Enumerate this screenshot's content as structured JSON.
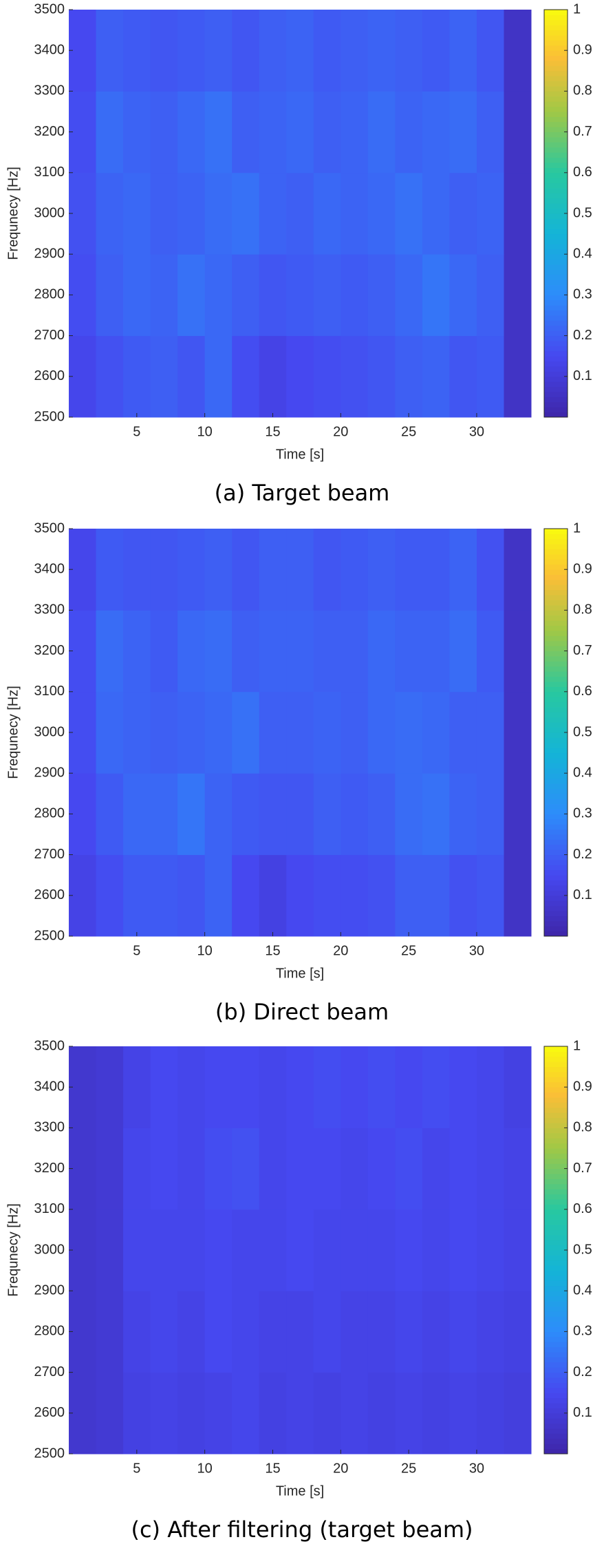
{
  "chart_data": [
    {
      "type": "heatmap",
      "title": "(a) Target beam",
      "xlabel": "Time [s]",
      "ylabel": "Frequnecy [Hz]",
      "colormap": "parula",
      "xlim": [
        0,
        34
      ],
      "ylim": [
        2500,
        3500
      ],
      "xticks": [
        5,
        10,
        15,
        20,
        25,
        30
      ],
      "yticks": [
        2500,
        2600,
        2700,
        2800,
        2900,
        3000,
        3100,
        3200,
        3300,
        3400,
        3500
      ],
      "clim": [
        0,
        1
      ],
      "cticks": [
        0.1,
        0.2,
        0.3,
        0.4,
        0.5,
        0.6,
        0.7,
        0.8,
        0.9,
        1
      ],
      "x_edges": [
        0,
        2,
        4,
        6,
        8,
        10,
        12,
        14,
        16,
        18,
        20,
        22,
        24,
        26,
        28,
        30,
        32,
        34
      ],
      "y_edges": [
        2500,
        2700,
        2900,
        3100,
        3300,
        3500
      ],
      "values": [
        [
          0.14,
          0.17,
          0.19,
          0.2,
          0.18,
          0.22,
          0.16,
          0.13,
          0.15,
          0.16,
          0.17,
          0.18,
          0.2,
          0.21,
          0.18,
          0.19,
          0.06
        ],
        [
          0.16,
          0.2,
          0.22,
          0.21,
          0.24,
          0.22,
          0.2,
          0.18,
          0.19,
          0.2,
          0.19,
          0.2,
          0.22,
          0.25,
          0.22,
          0.2,
          0.06
        ],
        [
          0.17,
          0.21,
          0.22,
          0.2,
          0.21,
          0.23,
          0.24,
          0.21,
          0.2,
          0.22,
          0.21,
          0.22,
          0.24,
          0.22,
          0.2,
          0.21,
          0.06
        ],
        [
          0.16,
          0.23,
          0.21,
          0.2,
          0.22,
          0.24,
          0.2,
          0.21,
          0.22,
          0.2,
          0.21,
          0.23,
          0.21,
          0.22,
          0.23,
          0.2,
          0.06
        ],
        [
          0.15,
          0.2,
          0.19,
          0.18,
          0.19,
          0.2,
          0.18,
          0.2,
          0.21,
          0.19,
          0.2,
          0.21,
          0.2,
          0.19,
          0.21,
          0.18,
          0.06
        ]
      ]
    },
    {
      "type": "heatmap",
      "title": "(b) Direct beam",
      "xlabel": "Time [s]",
      "ylabel": "Frequnecy [Hz]",
      "colormap": "parula",
      "xlim": [
        0,
        34
      ],
      "ylim": [
        2500,
        3500
      ],
      "xticks": [
        5,
        10,
        15,
        20,
        25,
        30
      ],
      "yticks": [
        2500,
        2600,
        2700,
        2800,
        2900,
        3000,
        3100,
        3200,
        3300,
        3400,
        3500
      ],
      "clim": [
        0,
        1
      ],
      "cticks": [
        0.1,
        0.2,
        0.3,
        0.4,
        0.5,
        0.6,
        0.7,
        0.8,
        0.9,
        1
      ],
      "x_edges": [
        0,
        2,
        4,
        6,
        8,
        10,
        12,
        14,
        16,
        18,
        20,
        22,
        24,
        26,
        28,
        30,
        32,
        34
      ],
      "y_edges": [
        2500,
        2700,
        2900,
        3100,
        3300,
        3500
      ],
      "values": [
        [
          0.13,
          0.16,
          0.19,
          0.19,
          0.18,
          0.21,
          0.15,
          0.12,
          0.15,
          0.16,
          0.16,
          0.17,
          0.2,
          0.2,
          0.17,
          0.18,
          0.06
        ],
        [
          0.15,
          0.19,
          0.22,
          0.22,
          0.25,
          0.21,
          0.19,
          0.18,
          0.18,
          0.2,
          0.19,
          0.2,
          0.23,
          0.24,
          0.21,
          0.2,
          0.06
        ],
        [
          0.16,
          0.22,
          0.21,
          0.2,
          0.21,
          0.22,
          0.24,
          0.2,
          0.2,
          0.21,
          0.2,
          0.22,
          0.23,
          0.22,
          0.2,
          0.2,
          0.06
        ],
        [
          0.16,
          0.23,
          0.21,
          0.19,
          0.22,
          0.23,
          0.2,
          0.21,
          0.21,
          0.2,
          0.2,
          0.22,
          0.21,
          0.21,
          0.23,
          0.19,
          0.06
        ],
        [
          0.14,
          0.19,
          0.18,
          0.18,
          0.19,
          0.2,
          0.18,
          0.2,
          0.2,
          0.18,
          0.19,
          0.2,
          0.19,
          0.19,
          0.21,
          0.17,
          0.06
        ]
      ]
    },
    {
      "type": "heatmap",
      "title": "(c) After filtering (target beam)",
      "xlabel": "Time [s]",
      "ylabel": "Frequnecy [Hz]",
      "colormap": "parula",
      "xlim": [
        0,
        34
      ],
      "ylim": [
        2500,
        3500
      ],
      "xticks": [
        5,
        10,
        15,
        20,
        25,
        30
      ],
      "yticks": [
        2500,
        2600,
        2700,
        2800,
        2900,
        3000,
        3100,
        3200,
        3300,
        3400,
        3500
      ],
      "clim": [
        0,
        1
      ],
      "cticks": [
        0.1,
        0.2,
        0.3,
        0.4,
        0.5,
        0.6,
        0.7,
        0.8,
        0.9,
        1
      ],
      "x_edges": [
        0,
        2,
        4,
        6,
        8,
        10,
        12,
        14,
        16,
        18,
        20,
        22,
        24,
        26,
        28,
        30,
        32,
        34
      ],
      "y_edges": [
        2500,
        2700,
        2900,
        3100,
        3300,
        3500
      ],
      "values": [
        [
          0.08,
          0.09,
          0.12,
          0.13,
          0.12,
          0.13,
          0.14,
          0.12,
          0.13,
          0.12,
          0.13,
          0.12,
          0.13,
          0.12,
          0.13,
          0.12,
          0.11
        ],
        [
          0.08,
          0.09,
          0.13,
          0.14,
          0.13,
          0.15,
          0.14,
          0.13,
          0.13,
          0.14,
          0.13,
          0.13,
          0.14,
          0.13,
          0.14,
          0.13,
          0.12
        ],
        [
          0.08,
          0.09,
          0.14,
          0.14,
          0.14,
          0.15,
          0.14,
          0.14,
          0.15,
          0.14,
          0.14,
          0.14,
          0.15,
          0.14,
          0.15,
          0.14,
          0.13
        ],
        [
          0.08,
          0.09,
          0.14,
          0.15,
          0.14,
          0.16,
          0.17,
          0.14,
          0.15,
          0.15,
          0.14,
          0.15,
          0.16,
          0.14,
          0.15,
          0.14,
          0.13
        ],
        [
          0.08,
          0.09,
          0.13,
          0.15,
          0.14,
          0.15,
          0.15,
          0.14,
          0.15,
          0.16,
          0.15,
          0.16,
          0.15,
          0.16,
          0.15,
          0.14,
          0.12
        ]
      ]
    }
  ]
}
